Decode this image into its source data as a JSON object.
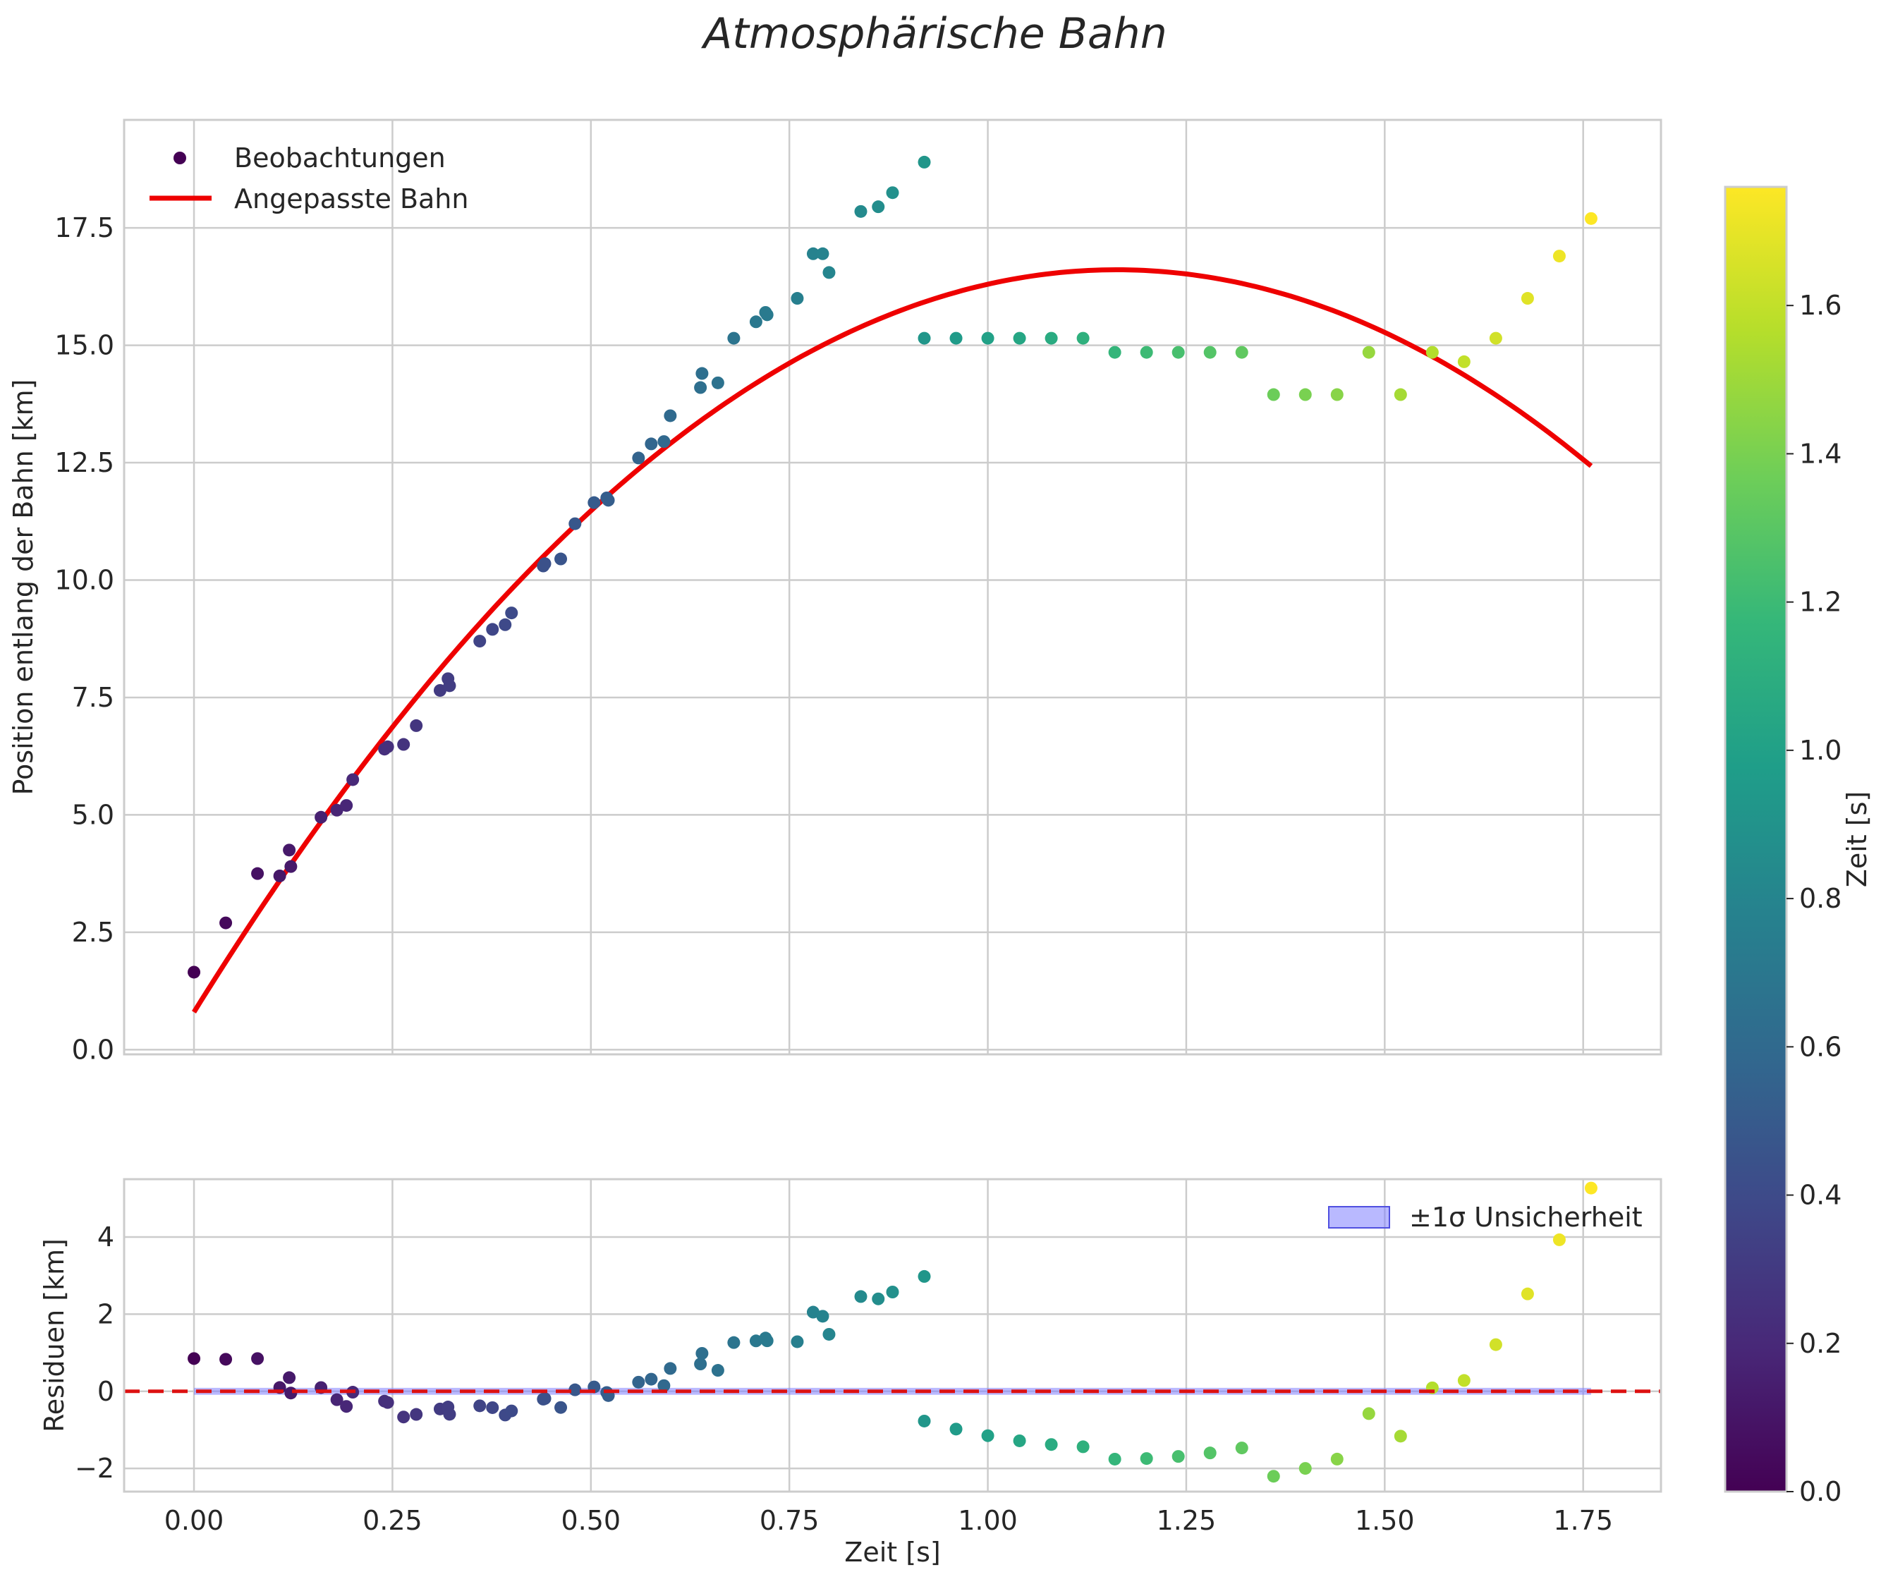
{
  "title": "Atmosphärische Bahn",
  "colors": {
    "fit_line": "#ee0000",
    "zero_line": "#dd1111",
    "band_fill": "#8080ff",
    "grid": "#cccccc",
    "text": "#262626",
    "viridis": [
      "#440154",
      "#482878",
      "#3e4989",
      "#31688e",
      "#26828e",
      "#1f9e89",
      "#35b779",
      "#6ece58",
      "#b5de2b",
      "#fde725"
    ]
  },
  "chart_data": [
    {
      "type": "scatter",
      "id": "main",
      "xlabel": "Zeit [s]",
      "ylabel": "Position entlang der Bahn [km]",
      "xlim": [
        -0.088,
        1.848
      ],
      "ylim": [
        -0.1,
        19.8
      ],
      "xticks": [
        0.0,
        0.25,
        0.5,
        0.75,
        1.0,
        1.25,
        1.5,
        1.75
      ],
      "yticks": [
        0.0,
        2.5,
        5.0,
        7.5,
        10.0,
        12.5,
        15.0,
        17.5
      ],
      "ytick_labels": [
        "0.0",
        "2.5",
        "5.0",
        "7.5",
        "10.0",
        "12.5",
        "15.0",
        "17.5"
      ],
      "legend": {
        "position": "top-left",
        "entries": [
          "Beobachtungen",
          "Angepasste Bahn"
        ]
      },
      "fit": {
        "name": "Angepasste Bahn",
        "model": "y = c0 + c1*t + c2*t^2",
        "c0": 0.8,
        "c1": 27.2,
        "c2": -11.7,
        "t_range": [
          0.0,
          1.76
        ]
      },
      "observations": {
        "name": "Beobachtungen",
        "t": [
          0.0,
          0.04,
          0.08,
          0.108,
          0.12,
          0.122,
          0.16,
          0.18,
          0.192,
          0.2,
          0.24,
          0.244,
          0.264,
          0.28,
          0.31,
          0.32,
          0.322,
          0.36,
          0.376,
          0.392,
          0.4,
          0.44,
          0.442,
          0.462,
          0.48,
          0.504,
          0.52,
          0.522,
          0.56,
          0.576,
          0.592,
          0.6,
          0.638,
          0.64,
          0.66,
          0.68,
          0.708,
          0.72,
          0.722,
          0.76,
          0.78,
          0.792,
          0.8,
          0.84,
          0.862,
          0.88,
          0.92,
          0.92,
          0.96,
          1.0,
          1.04,
          1.08,
          1.12,
          1.16,
          1.2,
          1.24,
          1.28,
          1.32,
          1.36,
          1.4,
          1.44,
          1.48,
          1.52,
          1.56,
          1.6,
          1.64,
          1.68,
          1.72,
          1.76
        ],
        "y": [
          1.65,
          2.7,
          3.75,
          3.7,
          4.25,
          3.9,
          4.95,
          5.1,
          5.2,
          5.75,
          6.4,
          6.45,
          6.5,
          6.9,
          7.65,
          7.9,
          7.75,
          8.7,
          8.95,
          9.05,
          9.3,
          10.3,
          10.35,
          10.45,
          11.2,
          11.65,
          11.75,
          11.7,
          12.6,
          12.9,
          12.95,
          13.5,
          14.1,
          14.4,
          14.2,
          15.15,
          15.5,
          15.7,
          15.65,
          16.0,
          16.95,
          16.95,
          16.55,
          17.85,
          17.95,
          18.25,
          18.9,
          15.15,
          15.15,
          15.15,
          15.15,
          15.15,
          15.15,
          14.85,
          14.85,
          14.85,
          14.85,
          14.85,
          13.95,
          13.95,
          13.95,
          14.85,
          13.95,
          14.85,
          14.65,
          15.15,
          16.0,
          16.9,
          17.7
        ]
      },
      "colorbar": {
        "label": "Zeit [s]",
        "range": [
          0.0,
          1.76
        ],
        "ticks": [
          0.0,
          0.2,
          0.4,
          0.6,
          0.8,
          1.0,
          1.2,
          1.4,
          1.6
        ],
        "tick_labels": [
          "0.0",
          "0.2",
          "0.4",
          "0.6",
          "0.8",
          "1.0",
          "1.2",
          "1.4",
          "1.6"
        ]
      }
    },
    {
      "type": "scatter",
      "id": "residuals",
      "xlabel": "Zeit [s]",
      "ylabel": "Residuen [km]",
      "xlim": [
        -0.088,
        1.848
      ],
      "ylim": [
        -2.6,
        5.5
      ],
      "xticks": [
        0.0,
        0.25,
        0.5,
        0.75,
        1.0,
        1.25,
        1.5,
        1.75
      ],
      "xtick_labels": [
        "0.00",
        "0.25",
        "0.50",
        "0.75",
        "1.00",
        "1.25",
        "1.50",
        "1.75"
      ],
      "yticks": [
        -2,
        0,
        2,
        4
      ],
      "ytick_labels": [
        "−2",
        "0",
        "2",
        "4"
      ],
      "legend": {
        "position": "top-right",
        "entries": [
          "±1σ Unsicherheit"
        ]
      },
      "band": {
        "name": "±1σ Unsicherheit",
        "sigma": 0.09
      },
      "zero_line": 0
    }
  ]
}
